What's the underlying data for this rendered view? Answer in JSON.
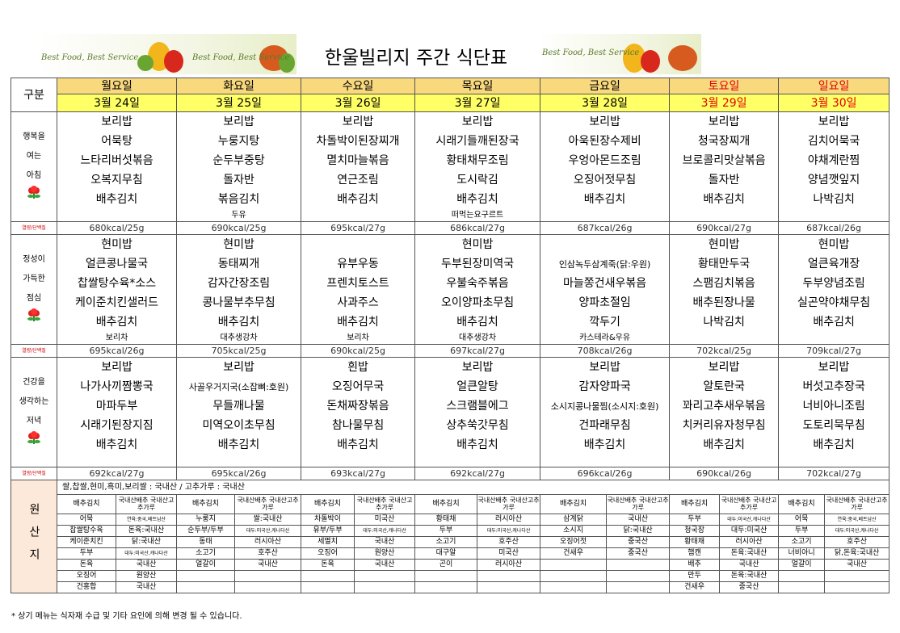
{
  "header": {
    "title": "한울빌리지 주간 식단표",
    "banners": [
      "Best Food, Best Service",
      "Best Food, Best Service",
      "Best Food, Best Service"
    ]
  },
  "menu": {
    "corner": "구분",
    "days": [
      "월요일",
      "화요일",
      "수요일",
      "목요일",
      "금요일",
      "토요일",
      "일요일"
    ],
    "dates": [
      "3월 24일",
      "3월 25일",
      "3월 26일",
      "3월 27일",
      "3월 28일",
      "3월 29일",
      "3월 30일"
    ],
    "kcal_label": "열량/단백질",
    "meals": [
      {
        "label": [
          "행복을",
          "여는",
          "아침"
        ],
        "items": [
          [
            "보리밥",
            "보리밥",
            "보리밥",
            "보리밥",
            "보리밥",
            "보리밥",
            "보리밥"
          ],
          [
            "어묵탕",
            "누룽지탕",
            "차돌박이된장찌개",
            "시래기들깨된장국",
            "아욱된장수제비",
            "청국장찌개",
            "김치어묵국"
          ],
          [
            "느타리버섯볶음",
            "순두부중탕",
            "멸치마늘볶음",
            "황태채무조림",
            "우엉아몬드조림",
            "브로콜리맛살볶음",
            "야채계란찜"
          ],
          [
            "오복지무침",
            "돌자반",
            "연근조림",
            "도시락김",
            "오징어젓무침",
            "돌자반",
            "양념깻잎지"
          ],
          [
            "배추김치",
            "볶음김치",
            "배추김치",
            "배추김치",
            "배추김치",
            "배추김치",
            "나박김치"
          ]
        ],
        "extras": [
          null,
          "두유",
          null,
          "떠먹는요구르트",
          null,
          null,
          null
        ],
        "kcal": [
          "680kcal/25g",
          "690kcal/25g",
          "695kcal/27g",
          "686kcal/27g",
          "687kcal/26g",
          "690kcal/27g",
          "687kcal/26g"
        ]
      },
      {
        "label": [
          "정성이",
          "가득한",
          "점심"
        ],
        "items": [
          [
            "현미밥",
            "현미밥",
            null,
            "현미밥",
            null,
            "현미밥",
            "현미밥"
          ],
          [
            "얼큰콩나물국",
            "동태찌개",
            "유부우동",
            "두부된장미역국",
            "인삼녹두삼계죽(닭:우원)",
            "황태만두국",
            "얼큰육개장"
          ],
          [
            "찹쌀탕수육*소스",
            "감자간장조림",
            "프렌치토스트",
            "우불숙주볶음",
            "마늘쫑건새우볶음",
            "스팸김치볶음",
            "두부양념조림"
          ],
          [
            "케이준치킨샐러드",
            "콩나물부추무침",
            "사과주스",
            "오이양파초무침",
            "양파초절임",
            "배추된장나물",
            "실곤약야채무침"
          ],
          [
            "배추김치",
            "배추김치",
            "배추김치",
            "배추김치",
            "깍두기",
            "나박김치",
            "배추김치"
          ]
        ],
        "extras": [
          "보리차",
          "대추생강차",
          "보리차",
          "대추생강차",
          "카스테라&우유",
          null,
          null
        ],
        "kcal": [
          "695kcal/26g",
          "705kcal/25g",
          "690kcal/25g",
          "697kcal/27g",
          "708kcal/26g",
          "702kcal/25g",
          "709kcal/27g"
        ]
      },
      {
        "label": [
          "건강을",
          "생각하는",
          "저녁"
        ],
        "items": [
          [
            "보리밥",
            "보리밥",
            "흰밥",
            "보리밥",
            "보리밥",
            "보리밥",
            "보리밥"
          ],
          [
            "나가사끼짬뽕국",
            "사골우거지국(소잡뼈:호원)",
            "오징어무국",
            "얼큰알탕",
            "감자양파국",
            "알토란국",
            "버섯고추장국"
          ],
          [
            "마파두부",
            "무들깨나물",
            "돈채짜장볶음",
            "스크램블에그",
            "소시지콩나물찜(소시지:호원)",
            "꽈리고추새우볶음",
            "너비아니조림"
          ],
          [
            "시래기된장지짐",
            "미역오이초무침",
            "참나물무침",
            "상추쑥갓무침",
            "건파래무침",
            "치커리유자청무침",
            "도토리묵무침"
          ],
          [
            "배추김치",
            "배추김치",
            "배추김치",
            "배추김치",
            "배추김치",
            "배추김치",
            "배추김치"
          ]
        ],
        "kcal": [
          "692kcal/27g",
          "695kcal/26g",
          "693kcal/27g",
          "692kcal/27g",
          "696kcal/26g",
          "690kcal/26g",
          "702kcal/27g"
        ]
      }
    ]
  },
  "origin": {
    "label": "원산지",
    "rice": "쌀,찹쌀,현미,흑미,보리쌀 : 국내산 / 고추가루 : 국내산",
    "rows": [
      [
        "배추김치",
        "국내산배추 국내산고추가루",
        "배추김치",
        "국내산배추 국내산고추가루",
        "배추김치",
        "국내산배추 국내산고추가루",
        "배추김치",
        "국내산배추 국내산고추가루",
        "배추김치",
        "국내산배추 국내산고추가루",
        "배추김치",
        "국내산배추 국내산고추가루",
        "배추김치",
        "국내산배추 국내산고추가루"
      ],
      [
        "어묵",
        "연육:중국,베트남산",
        "누룽지",
        "쌀:국내산",
        "차돌박이",
        "미국산",
        "황태채",
        "러시아산",
        "삼계닭",
        "국내산",
        "두부",
        "대두:미국산,캐나다산",
        "어묵",
        "연육:중국,베트남산"
      ],
      [
        "찹쌀탕수육",
        "돈육:국내산",
        "순두부/두부",
        "대두:미국산,캐나다산",
        "유부/두부",
        "대두:미국산,캐나다산",
        "두부",
        "대두:미국산,캐나다산",
        "소시지",
        "닭:국내산",
        "청국장",
        "대두:미국산",
        "두부",
        "대두:미국산,캐나다산"
      ],
      [
        "케이준치킨",
        "닭:국내산",
        "동태",
        "러시아산",
        "세멸치",
        "국내산",
        "소고기",
        "호주산",
        "오징어젓",
        "중국산",
        "황태채",
        "러시아산",
        "소고기",
        "호주산"
      ],
      [
        "두부",
        "대두:미국산,캐나다산",
        "소고기",
        "호주산",
        "오징어",
        "원양산",
        "대구알",
        "미국산",
        "건새우",
        "중국산",
        "햄캔",
        "돈육:국내산",
        "너비아니",
        "닭,돈육:국내산"
      ],
      [
        "돈육",
        "국내산",
        "얼갈이",
        "국내산",
        "돈육",
        "국내산",
        "곤이",
        "러시아산",
        null,
        null,
        "배추",
        "국내산",
        "얼갈이",
        "국내산"
      ],
      [
        "오징어",
        "원양산",
        null,
        null,
        null,
        null,
        null,
        null,
        null,
        null,
        "만두",
        "돈육:국내산",
        null,
        null
      ],
      [
        "건홍합",
        "국내산",
        null,
        null,
        null,
        null,
        null,
        null,
        null,
        null,
        "건새우",
        "중국산",
        null,
        null
      ]
    ]
  },
  "footnote": "* 상기 메뉴는 식자재 수급 및 기타 요인에 의해 변경 될 수 있습니다."
}
